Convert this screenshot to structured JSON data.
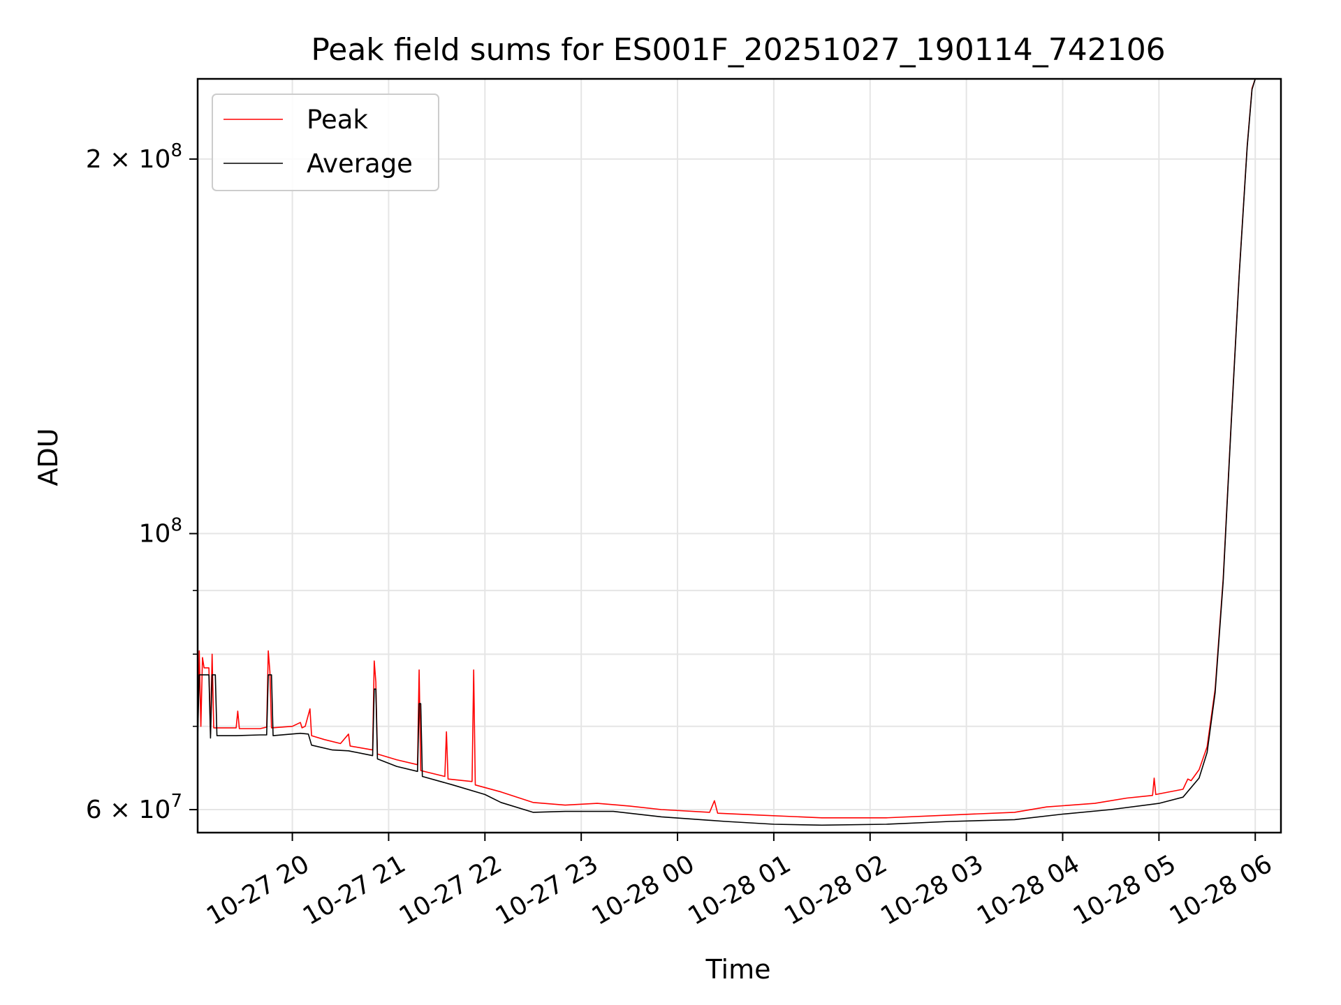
{
  "chart_data": {
    "type": "line",
    "title": "Peak field sums for ES001F_20251027_190114_742106",
    "xlabel": "Time",
    "ylabel": "ADU",
    "yscale": "log",
    "xlim": [
      "2025-10-27 19:01",
      "2025-10-28 06:16"
    ],
    "ylim": [
      57500000,
      232000000
    ],
    "grid": true,
    "legend_position": "top-left",
    "x_tick_labels": [
      "10-27 20",
      "10-27 21",
      "10-27 22",
      "10-27 23",
      "10-28 00",
      "10-28 01",
      "10-28 02",
      "10-28 03",
      "10-28 04",
      "10-28 05",
      "10-28 06"
    ],
    "x_ticks": [
      "2025-10-27 20:00",
      "2025-10-27 21:00",
      "2025-10-27 22:00",
      "2025-10-27 23:00",
      "2025-10-28 00:00",
      "2025-10-28 01:00",
      "2025-10-28 02:00",
      "2025-10-28 03:00",
      "2025-10-28 04:00",
      "2025-10-28 05:00",
      "2025-10-28 06:00"
    ],
    "y_ticks": [
      {
        "value": 60000000,
        "label_base": "6 × 10",
        "label_exp": "7"
      },
      {
        "value": 100000000,
        "label_base": "10",
        "label_exp": "8"
      },
      {
        "value": 200000000,
        "label_base": "2 × 10",
        "label_exp": "8"
      }
    ],
    "y_minor_ticks": [
      70000000,
      80000000,
      90000000
    ],
    "series": [
      {
        "name": "Peak",
        "color": "#ff0000",
        "points": [
          [
            "2025-10-27 19:01",
            69500000
          ],
          [
            "2025-10-27 19:02",
            80500000
          ],
          [
            "2025-10-27 19:03",
            70000000
          ],
          [
            "2025-10-27 19:04",
            79500000
          ],
          [
            "2025-10-27 19:05",
            78000000
          ],
          [
            "2025-10-27 19:08",
            78000000
          ],
          [
            "2025-10-27 19:09",
            69000000
          ],
          [
            "2025-10-27 19:10",
            80000000
          ],
          [
            "2025-10-27 19:11",
            69800000
          ],
          [
            "2025-10-27 19:25",
            69800000
          ],
          [
            "2025-10-27 19:26",
            72000000
          ],
          [
            "2025-10-27 19:27",
            69700000
          ],
          [
            "2025-10-27 19:40",
            69700000
          ],
          [
            "2025-10-27 19:44",
            69900000
          ],
          [
            "2025-10-27 19:45",
            80500000
          ],
          [
            "2025-10-27 19:46",
            77500000
          ],
          [
            "2025-10-27 19:47",
            69800000
          ],
          [
            "2025-10-27 20:00",
            70000000
          ],
          [
            "2025-10-27 20:05",
            70500000
          ],
          [
            "2025-10-27 20:06",
            69800000
          ],
          [
            "2025-10-27 20:08",
            70000000
          ],
          [
            "2025-10-27 20:11",
            72300000
          ],
          [
            "2025-10-27 20:12",
            68800000
          ],
          [
            "2025-10-27 20:20",
            68300000
          ],
          [
            "2025-10-27 20:30",
            67800000
          ],
          [
            "2025-10-27 20:35",
            69000000
          ],
          [
            "2025-10-27 20:36",
            67500000
          ],
          [
            "2025-10-27 20:50",
            67000000
          ],
          [
            "2025-10-27 20:51",
            79000000
          ],
          [
            "2025-10-27 20:52",
            76000000
          ],
          [
            "2025-10-27 20:53",
            66500000
          ],
          [
            "2025-10-27 21:05",
            65800000
          ],
          [
            "2025-10-27 21:18",
            65200000
          ],
          [
            "2025-10-27 21:19",
            77700000
          ],
          [
            "2025-10-27 21:20",
            64500000
          ],
          [
            "2025-10-27 21:35",
            63800000
          ],
          [
            "2025-10-27 21:36",
            69300000
          ],
          [
            "2025-10-27 21:37",
            63500000
          ],
          [
            "2025-10-27 21:52",
            63200000
          ],
          [
            "2025-10-27 21:53",
            77700000
          ],
          [
            "2025-10-27 21:54",
            62800000
          ],
          [
            "2025-10-27 22:10",
            62000000
          ],
          [
            "2025-10-27 22:30",
            60800000
          ],
          [
            "2025-10-27 22:50",
            60500000
          ],
          [
            "2025-10-27 23:10",
            60700000
          ],
          [
            "2025-10-27 23:30",
            60400000
          ],
          [
            "2025-10-27 23:50",
            60000000
          ],
          [
            "2025-10-28 00:20",
            59700000
          ],
          [
            "2025-10-28 00:23",
            61000000
          ],
          [
            "2025-10-28 00:25",
            59600000
          ],
          [
            "2025-10-28 00:50",
            59400000
          ],
          [
            "2025-10-28 01:30",
            59100000
          ],
          [
            "2025-10-28 02:10",
            59100000
          ],
          [
            "2025-10-28 02:50",
            59400000
          ],
          [
            "2025-10-28 03:30",
            59700000
          ],
          [
            "2025-10-28 03:50",
            60300000
          ],
          [
            "2025-10-28 04:20",
            60700000
          ],
          [
            "2025-10-28 04:40",
            61300000
          ],
          [
            "2025-10-28 04:56",
            61600000
          ],
          [
            "2025-10-28 04:57",
            63600000
          ],
          [
            "2025-10-28 04:58",
            61700000
          ],
          [
            "2025-10-28 05:15",
            62300000
          ],
          [
            "2025-10-28 05:18",
            63500000
          ],
          [
            "2025-10-28 05:20",
            63300000
          ],
          [
            "2025-10-28 05:25",
            64600000
          ],
          [
            "2025-10-28 05:30",
            67400000
          ],
          [
            "2025-10-28 05:35",
            75000000
          ],
          [
            "2025-10-28 05:40",
            92000000
          ],
          [
            "2025-10-28 05:45",
            123000000
          ],
          [
            "2025-10-28 05:50",
            162000000
          ],
          [
            "2025-10-28 05:55",
            205000000
          ],
          [
            "2025-10-28 05:58",
            228000000
          ],
          [
            "2025-10-28 06:00",
            232000000
          ]
        ]
      },
      {
        "name": "Average",
        "color": "#000000",
        "points": [
          [
            "2025-10-27 19:01",
            68500000
          ],
          [
            "2025-10-27 19:02",
            77000000
          ],
          [
            "2025-10-27 19:08",
            77000000
          ],
          [
            "2025-10-27 19:09",
            68500000
          ],
          [
            "2025-10-27 19:10",
            77000000
          ],
          [
            "2025-10-27 19:12",
            77000000
          ],
          [
            "2025-10-27 19:13",
            68800000
          ],
          [
            "2025-10-27 19:25",
            68800000
          ],
          [
            "2025-10-27 19:40",
            68900000
          ],
          [
            "2025-10-27 19:44",
            68900000
          ],
          [
            "2025-10-27 19:45",
            77000000
          ],
          [
            "2025-10-27 19:47",
            77000000
          ],
          [
            "2025-10-27 19:48",
            68800000
          ],
          [
            "2025-10-27 20:05",
            69100000
          ],
          [
            "2025-10-27 20:10",
            69000000
          ],
          [
            "2025-10-27 20:12",
            67600000
          ],
          [
            "2025-10-27 20:25",
            67000000
          ],
          [
            "2025-10-27 20:35",
            66900000
          ],
          [
            "2025-10-27 20:50",
            66300000
          ],
          [
            "2025-10-27 20:51",
            75000000
          ],
          [
            "2025-10-27 20:52",
            75000000
          ],
          [
            "2025-10-27 20:53",
            65900000
          ],
          [
            "2025-10-27 21:05",
            65000000
          ],
          [
            "2025-10-27 21:18",
            64400000
          ],
          [
            "2025-10-27 21:19",
            73000000
          ],
          [
            "2025-10-27 21:20",
            73000000
          ],
          [
            "2025-10-27 21:21",
            63800000
          ],
          [
            "2025-10-27 21:40",
            62800000
          ],
          [
            "2025-10-27 22:00",
            61700000
          ],
          [
            "2025-10-27 22:10",
            60800000
          ],
          [
            "2025-10-27 22:30",
            59700000
          ],
          [
            "2025-10-27 22:50",
            59800000
          ],
          [
            "2025-10-27 23:20",
            59800000
          ],
          [
            "2025-10-27 23:50",
            59200000
          ],
          [
            "2025-10-28 00:30",
            58700000
          ],
          [
            "2025-10-28 01:00",
            58400000
          ],
          [
            "2025-10-28 01:30",
            58300000
          ],
          [
            "2025-10-28 02:10",
            58400000
          ],
          [
            "2025-10-28 02:50",
            58700000
          ],
          [
            "2025-10-28 03:30",
            58900000
          ],
          [
            "2025-10-28 04:00",
            59500000
          ],
          [
            "2025-10-28 04:30",
            60000000
          ],
          [
            "2025-10-28 05:00",
            60700000
          ],
          [
            "2025-10-28 05:15",
            61400000
          ],
          [
            "2025-10-28 05:25",
            63600000
          ],
          [
            "2025-10-28 05:30",
            66700000
          ],
          [
            "2025-10-28 05:35",
            74500000
          ],
          [
            "2025-10-28 05:40",
            91500000
          ],
          [
            "2025-10-28 05:45",
            122500000
          ],
          [
            "2025-10-28 05:50",
            161500000
          ],
          [
            "2025-10-28 05:55",
            204500000
          ],
          [
            "2025-10-28 05:58",
            227500000
          ],
          [
            "2025-10-28 06:00",
            232000000
          ]
        ]
      }
    ]
  }
}
